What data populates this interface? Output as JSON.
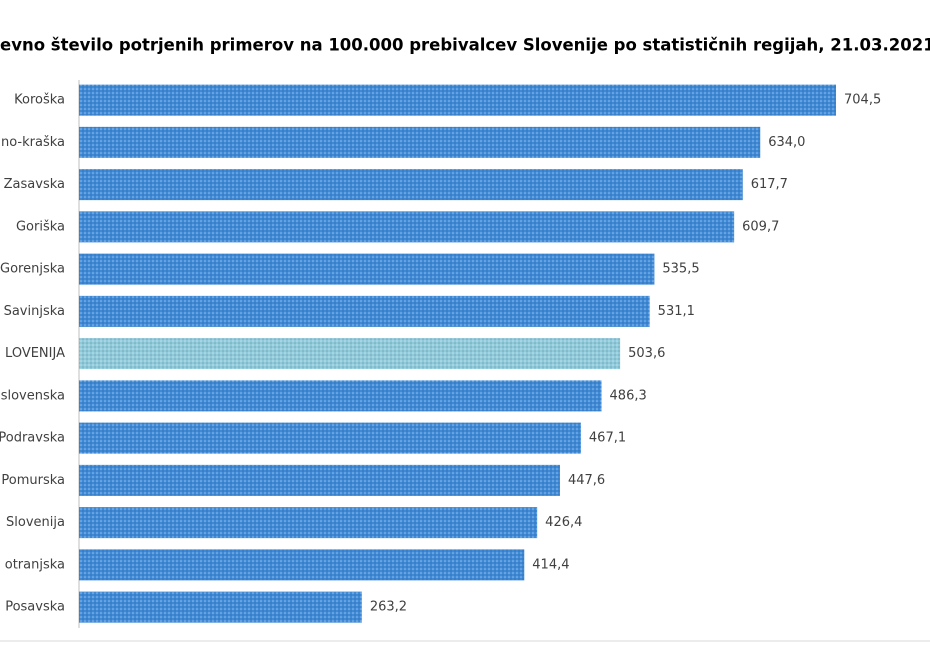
{
  "chart_data": {
    "type": "bar",
    "orientation": "horizontal",
    "title": "evno število potrjenih primerov na 100.000 prebivalcev Slovenije po statističnih regijah, 21.03.2021",
    "categories": [
      "Koroška",
      "no-kraška",
      "Zasavska",
      "Goriška",
      "Gorenjska",
      "Savinjska",
      "LOVENIJA",
      "slovenska",
      "Podravska",
      "Pomurska",
      "Slovenija",
      "otranjska",
      "Posavska"
    ],
    "values": [
      704.5,
      634.0,
      617.7,
      609.7,
      535.5,
      531.1,
      503.6,
      486.3,
      467.1,
      447.6,
      426.4,
      414.4,
      263.2
    ],
    "value_labels": [
      "704,5",
      "634,0",
      "617,7",
      "609,7",
      "535,5",
      "531,1",
      "503,6",
      "486,3",
      "467,1",
      "447,6",
      "426,4",
      "414,4",
      "263,2"
    ],
    "colors": [
      "#3f8ad6",
      "#3f8ad6",
      "#3f8ad6",
      "#3f8ad6",
      "#3f8ad6",
      "#3f8ad6",
      "#8fcadb",
      "#3f8ad6",
      "#3f8ad6",
      "#3f8ad6",
      "#3f8ad6",
      "#3f8ad6",
      "#3f8ad6"
    ]
  }
}
